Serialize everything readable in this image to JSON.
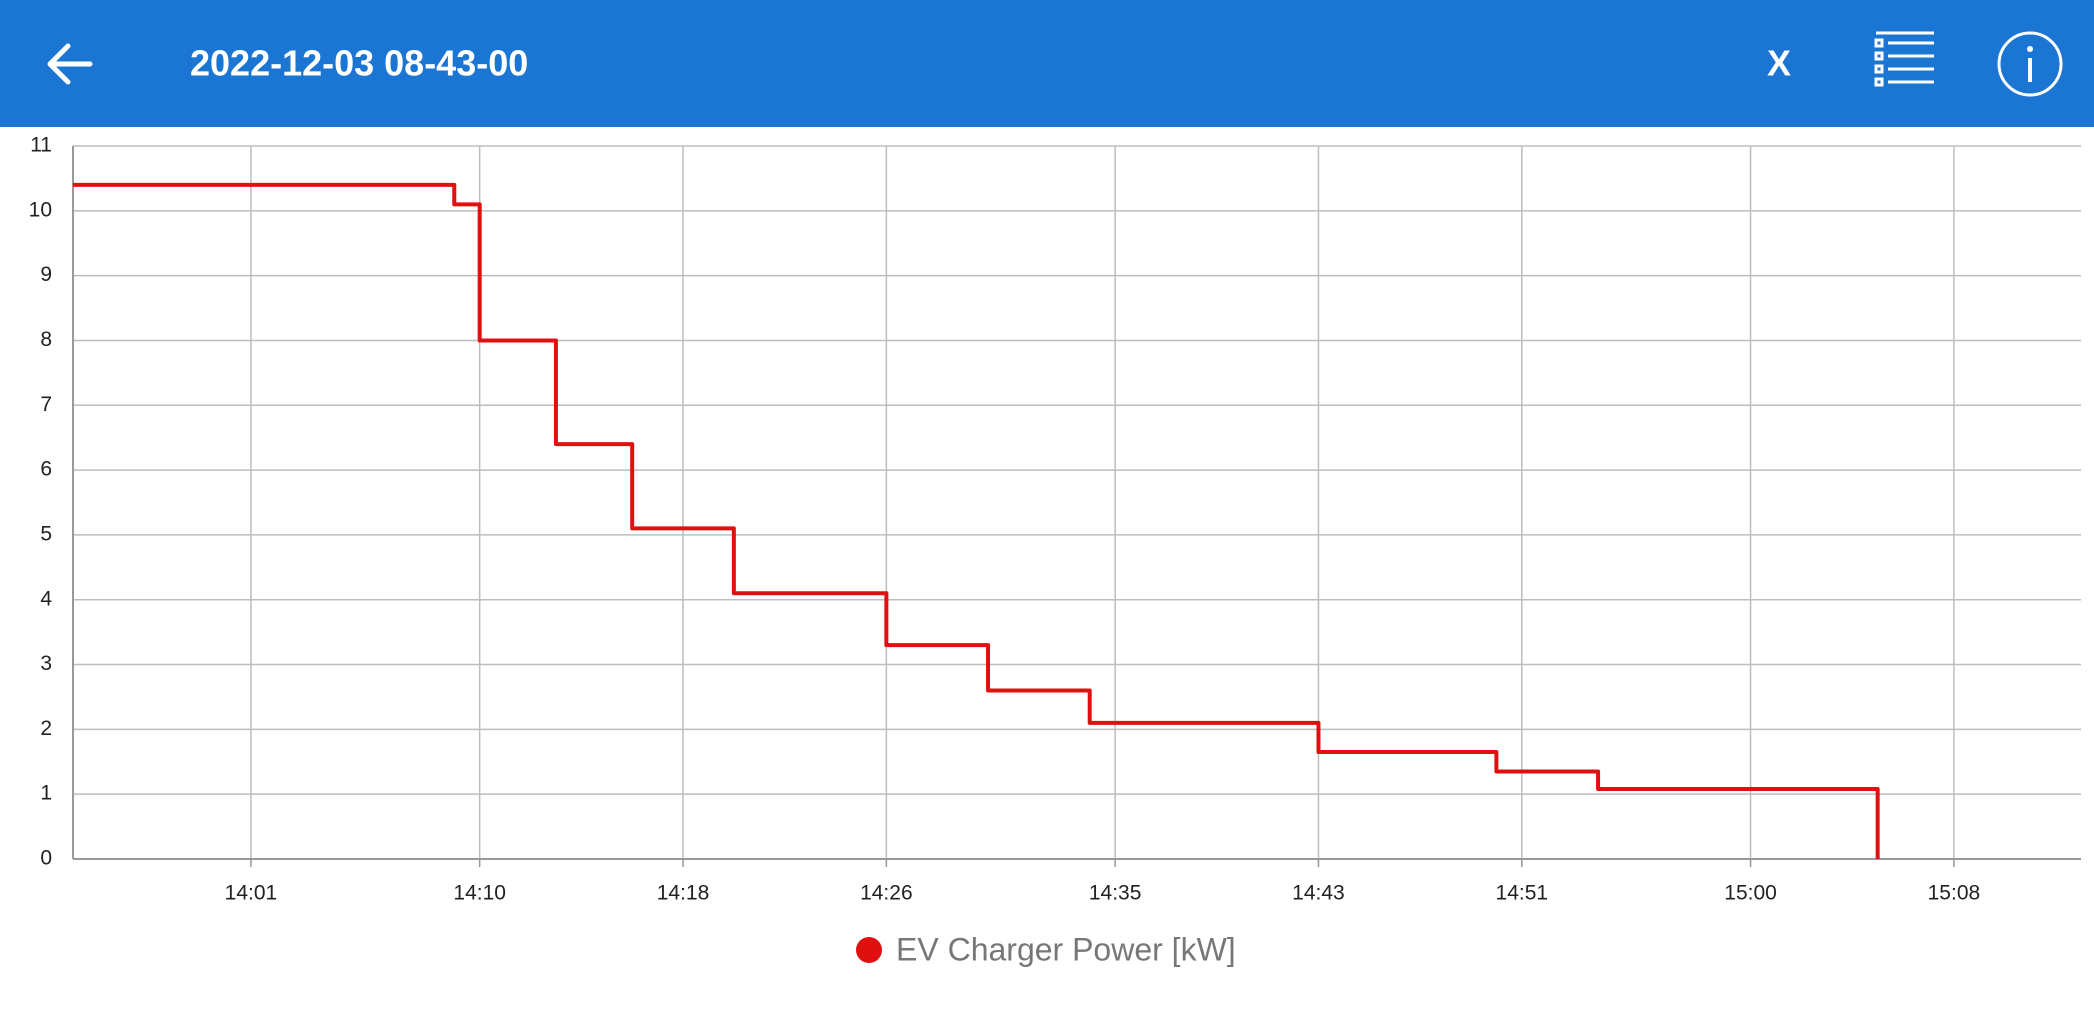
{
  "header": {
    "title": "2022-12-03 08-43-00",
    "close_label": "X"
  },
  "chart_data": {
    "type": "line",
    "x": [
      "13:54",
      "14:09",
      "14:09",
      "14:10",
      "14:10",
      "14:13",
      "14:13",
      "14:16",
      "14:16",
      "14:20",
      "14:20",
      "14:26",
      "14:26",
      "14:30",
      "14:30",
      "14:34",
      "14:34",
      "14:43",
      "14:43",
      "14:50",
      "14:50",
      "14:54",
      "14:54",
      "15:05",
      "15:05"
    ],
    "series": [
      {
        "name": "EV Charger Power [kW]",
        "color": "#e01010",
        "values": [
          10.4,
          10.4,
          10.1,
          10.1,
          8.0,
          8.0,
          6.4,
          6.4,
          5.1,
          5.1,
          4.1,
          4.1,
          3.3,
          3.3,
          2.6,
          2.6,
          2.1,
          2.1,
          1.65,
          1.65,
          1.35,
          1.35,
          1.08,
          1.08,
          0
        ]
      }
    ],
    "xlim": [
      "13:54",
      "15:13"
    ],
    "xticks": [
      "14:01",
      "14:10",
      "14:18",
      "14:26",
      "14:35",
      "14:43",
      "14:51",
      "15:00",
      "15:08"
    ],
    "ylim": [
      0,
      11
    ],
    "yticks": [
      0,
      1,
      2,
      3,
      4,
      5,
      6,
      7,
      8,
      9,
      10,
      11
    ],
    "grid": true
  }
}
